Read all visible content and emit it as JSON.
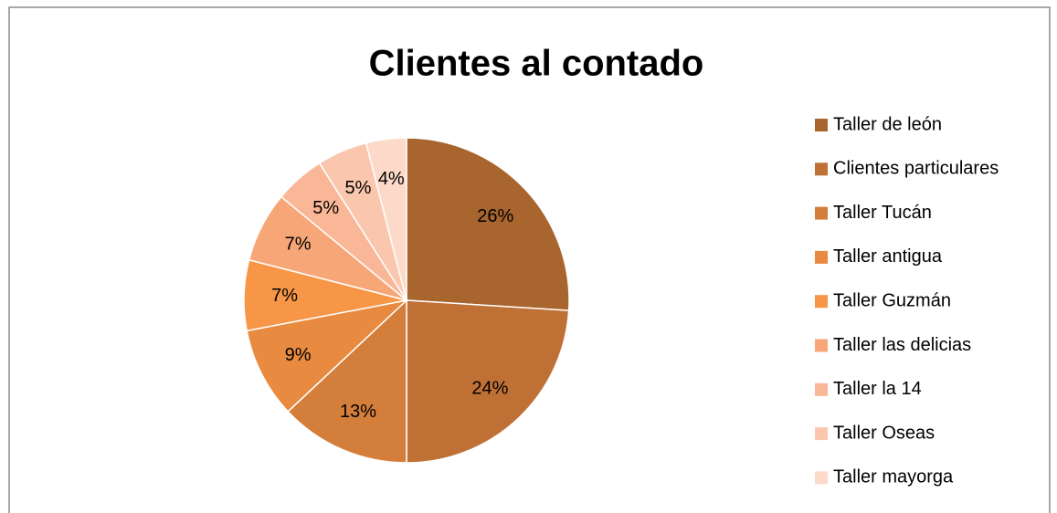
{
  "chart_data": {
    "type": "pie",
    "title": "Clientes al contado",
    "categories": [
      "Taller de león",
      "Clientes particulares",
      "Taller Tucán",
      "Taller antigua",
      "Taller Guzmán",
      "Taller las delicias",
      "Taller la 14",
      "Taller Oseas",
      "Taller mayorga"
    ],
    "values": [
      26,
      24,
      13,
      9,
      7,
      7,
      5,
      5,
      4
    ],
    "value_labels": [
      "26%",
      "24%",
      "13%",
      "9%",
      "7%",
      "7%",
      "5%",
      "5%",
      "4%"
    ],
    "colors": [
      "#a8652e",
      "#bf7035",
      "#d47e3b",
      "#e88b40",
      "#f79646",
      "#f7a777",
      "#f9b797",
      "#fac7ae",
      "#fcd9c8"
    ],
    "legend": "right"
  }
}
